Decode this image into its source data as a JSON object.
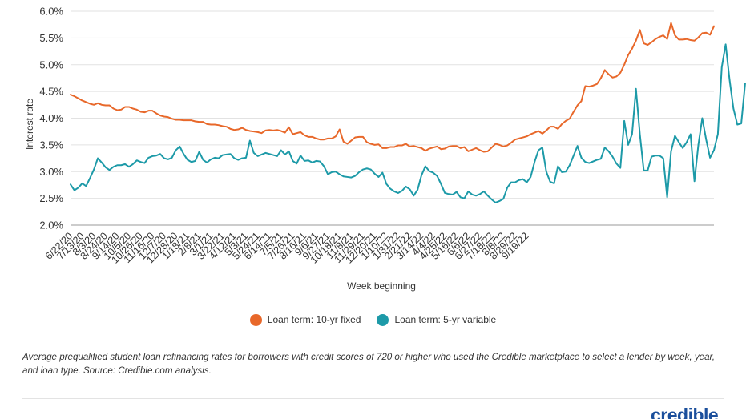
{
  "chart_data": {
    "type": "line",
    "xlabel": "Week beginning",
    "ylabel": "Interest rate",
    "ylim": [
      2.0,
      6.0
    ],
    "yticks": [
      "2.0%",
      "2.5%",
      "3.0%",
      "3.5%",
      "4.0%",
      "4.5%",
      "5.0%",
      "5.5%",
      "6.0%"
    ],
    "xtick_labels": [
      "6/22/20",
      "7/13/20",
      "8/3/20",
      "8/24/20",
      "9/14/20",
      "10/5/20",
      "10/26/20",
      "11/16/20",
      "12/7/20",
      "12/28/20",
      "1/18/21",
      "2/8/21",
      "3/1/21",
      "3/22/21",
      "4/12/21",
      "5/3/21",
      "5/24/21",
      "6/14/21",
      "7/5/21",
      "7/26/21",
      "8/16/21",
      "9/6/21",
      "9/27/21",
      "10/18/21",
      "11/8/21",
      "11/29/21",
      "12/20/21",
      "1/10/22",
      "1/31/22",
      "2/21/22",
      "3/14/22",
      "4/4/22",
      "4/25/22",
      "5/16/22",
      "6/6/22",
      "6/27/22",
      "7/18/22",
      "8/8/22",
      "8/29/22",
      "9/19/22"
    ],
    "grid": "horizontal",
    "legend_position": "bottom",
    "series": [
      {
        "name": "Loan term: 10-yr fixed",
        "color": "#e8682a",
        "values": [
          4.44,
          4.41,
          4.37,
          4.33,
          4.3,
          4.27,
          4.25,
          4.28,
          4.25,
          4.24,
          4.24,
          4.18,
          4.15,
          4.16,
          4.21,
          4.21,
          4.18,
          4.16,
          4.12,
          4.11,
          4.14,
          4.14,
          4.09,
          4.05,
          4.03,
          4.02,
          3.99,
          3.97,
          3.97,
          3.96,
          3.96,
          3.96,
          3.94,
          3.93,
          3.93,
          3.89,
          3.88,
          3.88,
          3.87,
          3.85,
          3.84,
          3.8,
          3.78,
          3.79,
          3.82,
          3.78,
          3.76,
          3.75,
          3.74,
          3.72,
          3.77,
          3.78,
          3.77,
          3.78,
          3.76,
          3.73,
          3.83,
          3.7,
          3.72,
          3.74,
          3.68,
          3.65,
          3.65,
          3.62,
          3.6,
          3.6,
          3.62,
          3.62,
          3.66,
          3.79,
          3.56,
          3.52,
          3.58,
          3.64,
          3.65,
          3.65,
          3.55,
          3.52,
          3.5,
          3.51,
          3.44,
          3.44,
          3.46,
          3.46,
          3.49,
          3.49,
          3.52,
          3.47,
          3.48,
          3.46,
          3.44,
          3.39,
          3.43,
          3.45,
          3.47,
          3.42,
          3.43,
          3.47,
          3.48,
          3.48,
          3.44,
          3.46,
          3.38,
          3.41,
          3.44,
          3.4,
          3.37,
          3.38,
          3.45,
          3.52,
          3.5,
          3.47,
          3.49,
          3.54,
          3.6,
          3.62,
          3.64,
          3.66,
          3.7,
          3.73,
          3.76,
          3.71,
          3.77,
          3.84,
          3.84,
          3.8,
          3.89,
          3.95,
          3.99,
          4.12,
          4.24,
          4.32,
          4.6,
          4.59,
          4.61,
          4.64,
          4.75,
          4.9,
          4.82,
          4.76,
          4.78,
          4.85,
          5.0,
          5.18,
          5.3,
          5.45,
          5.65,
          5.4,
          5.37,
          5.42,
          5.48,
          5.52,
          5.55,
          5.48,
          5.78,
          5.55,
          5.47,
          5.47,
          5.48,
          5.46,
          5.45,
          5.51,
          5.59,
          5.6,
          5.56,
          5.72
        ]
      },
      {
        "name": "Loan term: 5-yr variable",
        "color": "#1d9aa8",
        "values": [
          2.76,
          2.65,
          2.7,
          2.78,
          2.73,
          2.88,
          3.04,
          3.25,
          3.17,
          3.08,
          3.03,
          3.09,
          3.12,
          3.12,
          3.14,
          3.09,
          3.14,
          3.21,
          3.18,
          3.16,
          3.26,
          3.29,
          3.3,
          3.33,
          3.25,
          3.23,
          3.26,
          3.4,
          3.47,
          3.33,
          3.22,
          3.18,
          3.2,
          3.37,
          3.22,
          3.17,
          3.23,
          3.26,
          3.25,
          3.31,
          3.32,
          3.33,
          3.25,
          3.22,
          3.25,
          3.26,
          3.58,
          3.35,
          3.29,
          3.32,
          3.35,
          3.33,
          3.31,
          3.29,
          3.4,
          3.32,
          3.38,
          3.2,
          3.15,
          3.3,
          3.2,
          3.21,
          3.17,
          3.2,
          3.19,
          3.1,
          2.95,
          2.99,
          3.0,
          2.95,
          2.91,
          2.9,
          2.89,
          2.92,
          2.99,
          3.04,
          3.06,
          3.04,
          2.96,
          2.9,
          2.98,
          2.77,
          2.68,
          2.63,
          2.6,
          2.64,
          2.72,
          2.67,
          2.55,
          2.66,
          2.93,
          3.1,
          3.01,
          2.98,
          2.92,
          2.77,
          2.6,
          2.58,
          2.57,
          2.62,
          2.52,
          2.5,
          2.63,
          2.57,
          2.55,
          2.58,
          2.63,
          2.55,
          2.48,
          2.42,
          2.45,
          2.49,
          2.7,
          2.8,
          2.8,
          2.84,
          2.86,
          2.8,
          2.9,
          3.18,
          3.4,
          3.45,
          3.0,
          2.81,
          2.78,
          3.1,
          2.99,
          3.0,
          3.12,
          3.3,
          3.48,
          3.26,
          3.18,
          3.16,
          3.19,
          3.22,
          3.24,
          3.45,
          3.38,
          3.28,
          3.15,
          3.07,
          3.95,
          3.5,
          3.7,
          4.55,
          3.7,
          3.02,
          3.02,
          3.28,
          3.3,
          3.3,
          3.25,
          2.52,
          3.38,
          3.67,
          3.55,
          3.44,
          3.55,
          3.7,
          2.82,
          3.5,
          4.0,
          3.6,
          3.26,
          3.4,
          3.7,
          4.95,
          5.38,
          4.72,
          4.18,
          3.88,
          3.9,
          4.65
        ]
      }
    ]
  },
  "caption": "Average prequalified student loan refinancing rates for borrowers with credit scores of 720 or higher who used the Credible marketplace to select a lender by week, year, and loan type. Source: Credible.com analysis.",
  "logo_text": "credible"
}
